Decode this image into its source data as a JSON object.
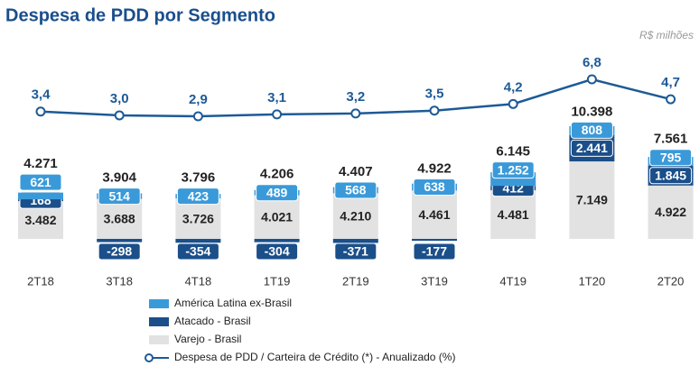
{
  "chart_data": {
    "type": "bar",
    "title": "Despesa de PDD por Segmento",
    "subtitle": "R$ milhões",
    "categories": [
      "2T18",
      "3T18",
      "4T18",
      "1T19",
      "2T19",
      "3T19",
      "4T19",
      "1T20",
      "2T20"
    ],
    "series": [
      {
        "name": "Varejo - Brasil",
        "color": "#e2e2e2",
        "values": [
          3482,
          3688,
          3726,
          4021,
          4210,
          4461,
          4481,
          7149,
          4922
        ],
        "value_labels": [
          "3.482",
          "3.688",
          "3.726",
          "4.021",
          "4.210",
          "4.461",
          "4.481",
          "7.149",
          "4.922"
        ]
      },
      {
        "name": "Atacado - Brasil",
        "color": "#1b4f8a",
        "values": [
          168,
          -298,
          -354,
          -304,
          -371,
          -177,
          412,
          2441,
          1845
        ],
        "value_labels": [
          "168",
          "-298",
          "-354",
          "-304",
          "-371",
          "-177",
          "412",
          "2.441",
          "1.845"
        ]
      },
      {
        "name": "América Latina ex-Brasil",
        "color": "#3a9ad9",
        "values": [
          621,
          514,
          423,
          489,
          568,
          638,
          1252,
          808,
          795
        ],
        "value_labels": [
          "621",
          "514",
          "423",
          "489",
          "568",
          "638",
          "1.252",
          "808",
          "795"
        ]
      }
    ],
    "totals": {
      "values": [
        4271,
        3904,
        3796,
        4206,
        4407,
        4922,
        6145,
        10398,
        7561
      ],
      "value_labels": [
        "4.271",
        "3.904",
        "3.796",
        "4.206",
        "4.407",
        "4.922",
        "6.145",
        "10.398",
        "7.561"
      ]
    },
    "line": {
      "name": "Despesa de PDD / Carteira de Crédito (*) - Anualizado (%)",
      "color": "#1d5a96",
      "values": [
        3.4,
        3.0,
        2.9,
        3.1,
        3.2,
        3.5,
        4.2,
        6.8,
        4.7
      ],
      "value_labels": [
        "3,4",
        "3,0",
        "2,9",
        "3,1",
        "3,2",
        "3,5",
        "4,2",
        "6,8",
        "4,7"
      ]
    }
  }
}
